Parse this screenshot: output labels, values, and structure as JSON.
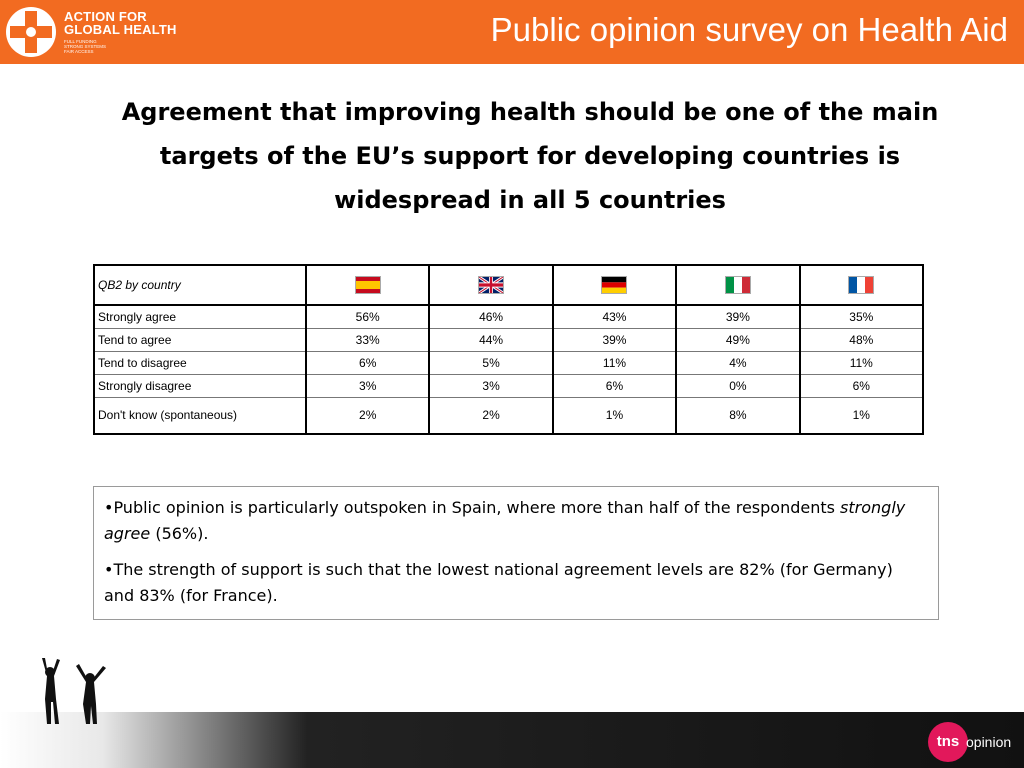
{
  "header": {
    "title": "Public opinion survey on Health Aid",
    "brand_line1": "ACTION FOR",
    "brand_line2": "GLOBAL HEALTH",
    "brand_tagline": [
      "FULL FUNDING",
      "STRONG SYSTEMS",
      "FAIR ACCESS"
    ],
    "logo_icon": "red-cross-figures-logo",
    "color": "#f26b21"
  },
  "headline": "Agreement that improving health should be one of the main targets of the EU’s support for developing countries is widespread in all 5 countries",
  "table": {
    "header_label": "QB2 by country",
    "columns": [
      {
        "flag": "spain-flag-icon"
      },
      {
        "flag": "uk-flag-icon"
      },
      {
        "flag": "germany-flag-icon"
      },
      {
        "flag": "italy-flag-icon"
      },
      {
        "flag": "france-flag-icon"
      }
    ],
    "rows": [
      {
        "label": "Strongly agree",
        "values": [
          "56%",
          "46%",
          "43%",
          "39%",
          "35%"
        ]
      },
      {
        "label": "Tend to agree",
        "values": [
          "33%",
          "44%",
          "39%",
          "49%",
          "48%"
        ]
      },
      {
        "label": "Tend to disagree",
        "values": [
          "6%",
          "5%",
          "11%",
          "4%",
          "11%"
        ]
      },
      {
        "label": "Strongly disagree",
        "values": [
          "3%",
          "3%",
          "6%",
          "0%",
          "6%"
        ]
      },
      {
        "label": "Don't know (spontaneous)",
        "values": [
          "2%",
          "2%",
          "1%",
          "8%",
          "1%"
        ]
      }
    ]
  },
  "notes": {
    "bullet1_pre": "•Public opinion is particularly outspoken in Spain, where more than half of the respondents ",
    "bullet1_em": "strongly agree",
    "bullet1_post": " (56%).",
    "bullet2": "•The strength of support is such that the lowest national agreement levels are 82% (for Germany) and 83% (for France)."
  },
  "footer": {
    "brand_badge": "tns",
    "brand_word": "opinion",
    "brand_color": "#e2185b",
    "image": "people-silhouettes-icon"
  }
}
